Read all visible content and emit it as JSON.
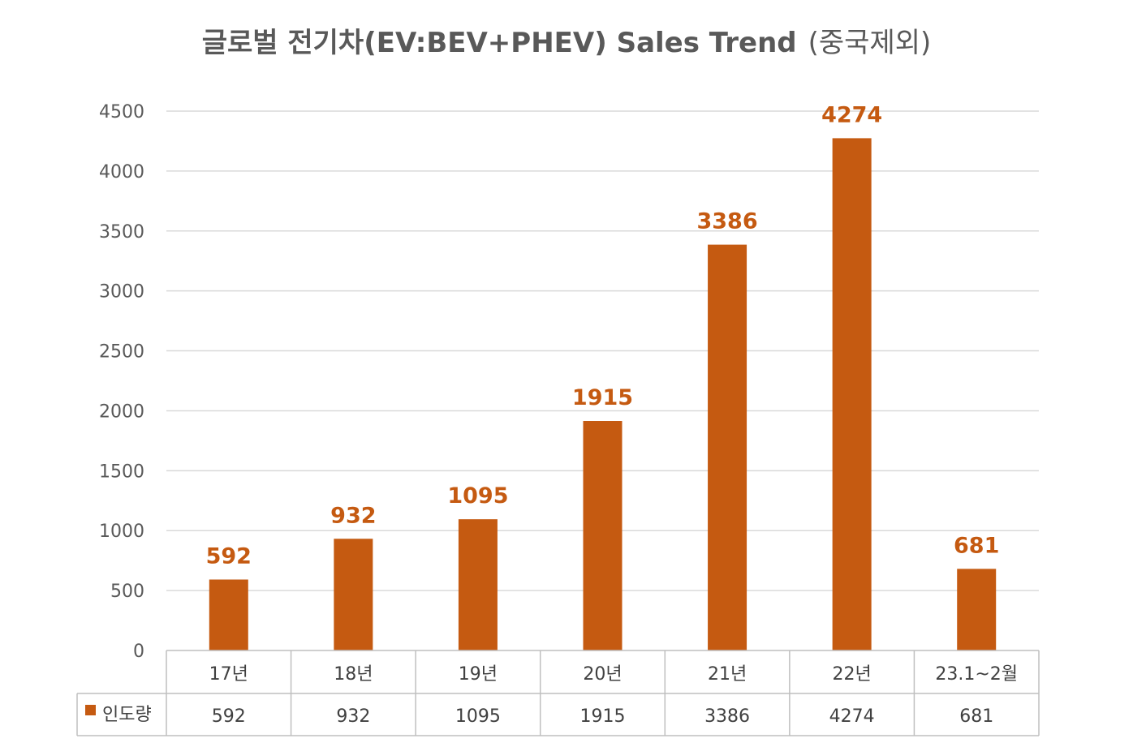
{
  "chart_data": {
    "type": "bar",
    "title": "글로벌 전기차(EV:BEV+PHEV) Sales Trend",
    "subtitle": "(중국제외)",
    "categories": [
      "17년",
      "18년",
      "19년",
      "20년",
      "21년",
      "22년",
      "23.1~2월"
    ],
    "series": [
      {
        "name": "인도량",
        "values": [
          592,
          932,
          1095,
          1915,
          3386,
          4274,
          681
        ],
        "color": "#c55a11"
      }
    ],
    "ylim": [
      0,
      4500
    ],
    "yticks": [
      0,
      500,
      1000,
      1500,
      2000,
      2500,
      3000,
      3500,
      4000,
      4500
    ],
    "grid": true,
    "data_table": true,
    "data_labels": true
  }
}
